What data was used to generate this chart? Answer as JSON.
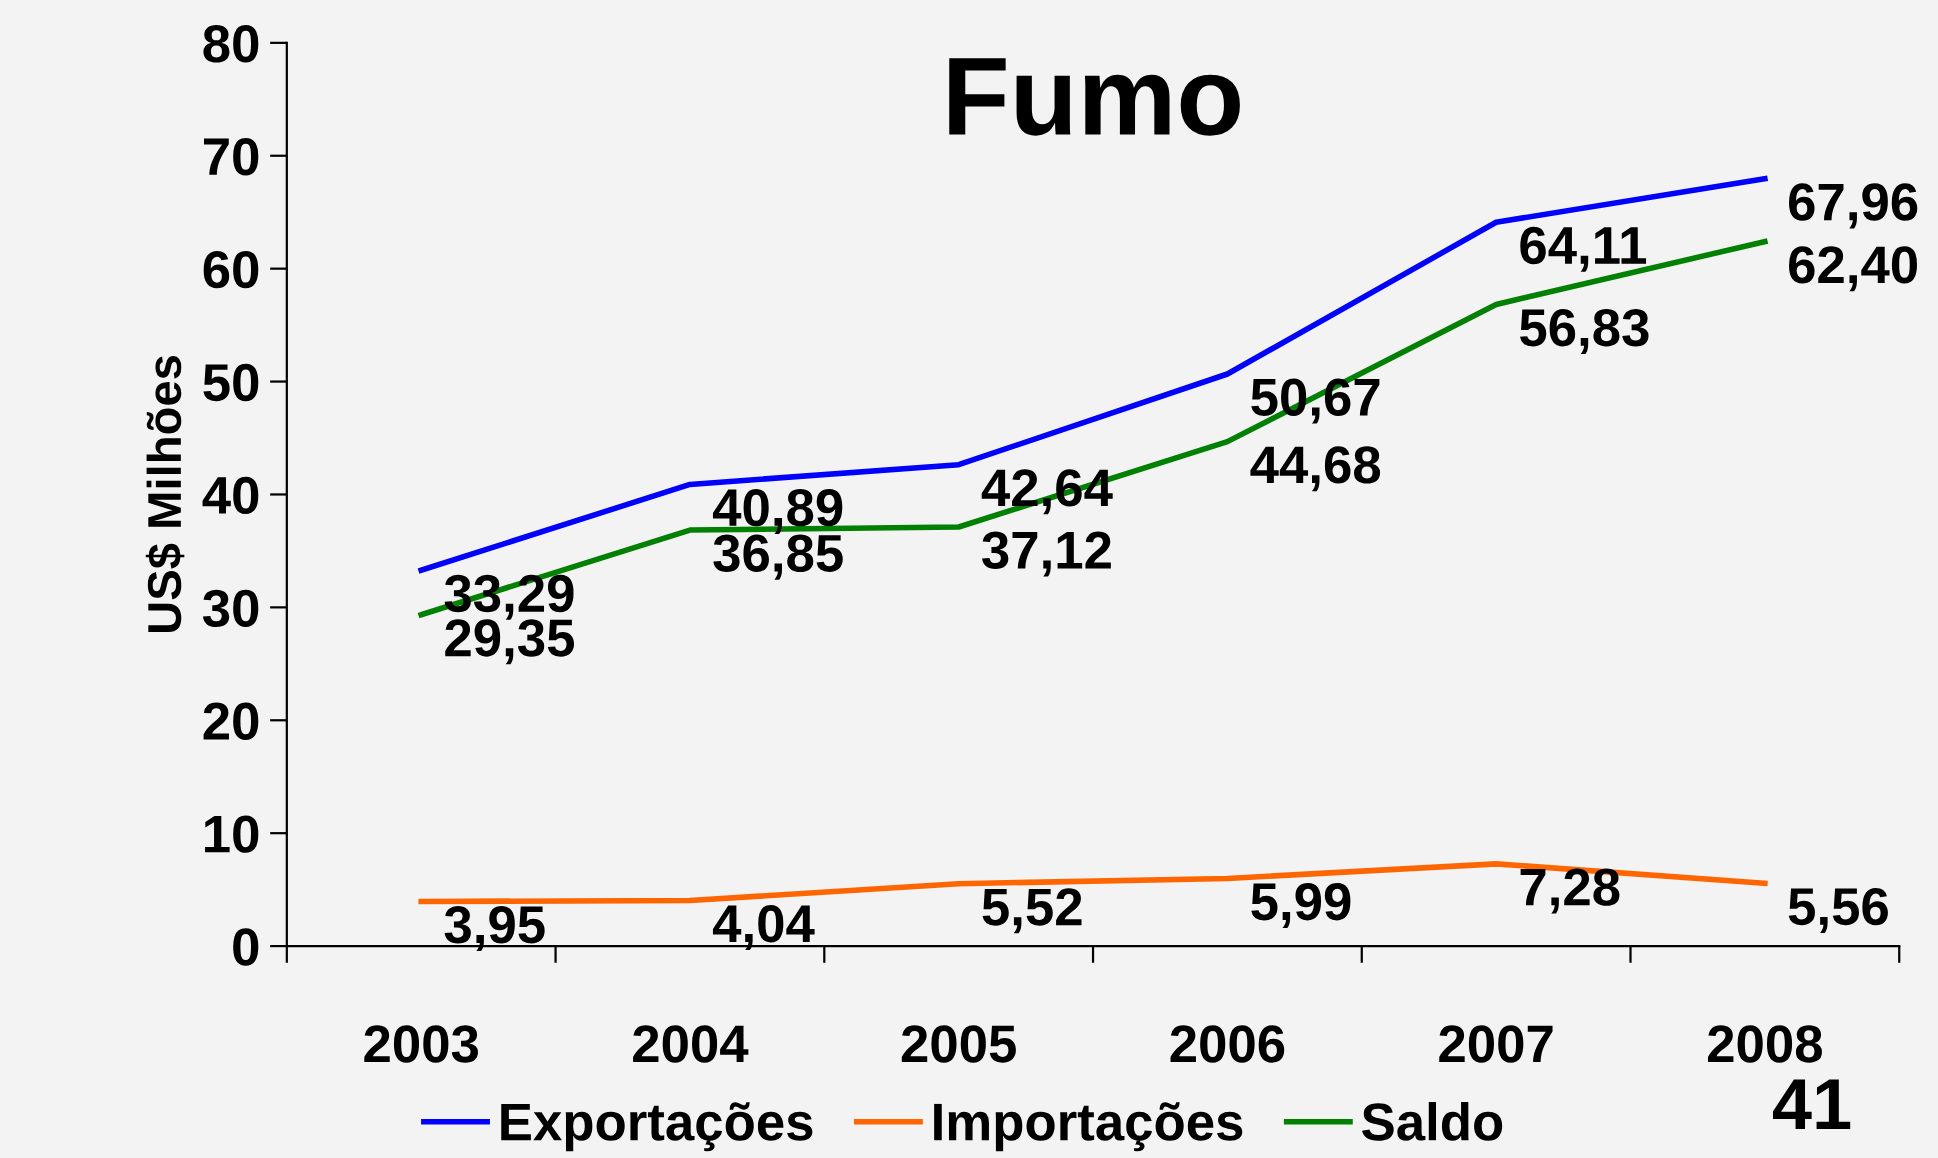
{
  "chart_data": {
    "type": "line",
    "title": "Fumo",
    "ylabel": "US$ Milhões",
    "categories": [
      "2003",
      "2004",
      "2005",
      "2006",
      "2007",
      "2008"
    ],
    "series": [
      {
        "name": "Exportações",
        "color": "#0000ff",
        "values": [
          33.29,
          40.89,
          42.64,
          50.67,
          64.11,
          67.96
        ],
        "value_labels": [
          "33,29",
          "40,89",
          "42,64",
          "50,67",
          "64,11",
          "67,96"
        ]
      },
      {
        "name": "Importações",
        "color": "#ff6600",
        "values": [
          3.95,
          4.04,
          5.52,
          5.99,
          7.28,
          5.56
        ],
        "value_labels": [
          "3,95",
          "4,04",
          "5,52",
          "5,99",
          "7,28",
          "5,56"
        ]
      },
      {
        "name": "Saldo",
        "color": "#008000",
        "values": [
          29.35,
          36.85,
          37.12,
          44.68,
          56.83,
          62.4
        ],
        "value_labels": [
          "29,35",
          "36,85",
          "37,12",
          "44,68",
          "56,83",
          "62,40"
        ]
      }
    ],
    "ylim": [
      0,
      80
    ],
    "yticks": [
      0,
      10,
      20,
      30,
      40,
      50,
      60,
      70,
      80
    ],
    "grid": false,
    "legend": "bottom",
    "marker": "none",
    "line_style": "solid",
    "annotations": [
      "41"
    ]
  }
}
